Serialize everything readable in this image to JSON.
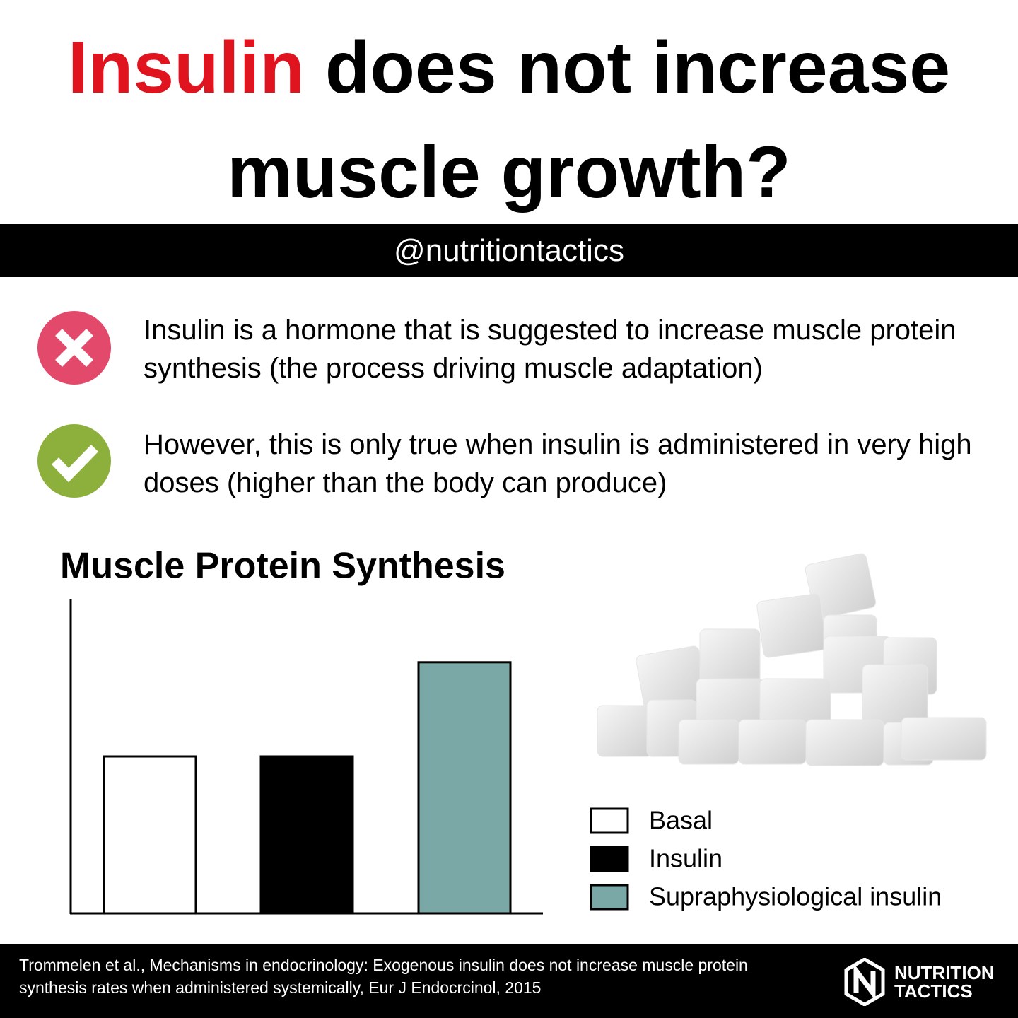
{
  "header": {
    "title_highlight": "Insulin",
    "title_line1_rest": "does not increase",
    "title_line2": "muscle growth?"
  },
  "handle": "@nutritiontactics",
  "points": [
    "Insulin is a hormone that is suggested to increase muscle protein synthesis (the process driving muscle adaptation)",
    "However, this is only true when insulin is administered in very high doses (higher than the body can produce)"
  ],
  "chart_data": {
    "type": "bar",
    "title": "Muscle Protein Synthesis",
    "categories": [
      "Basal",
      "Insulin",
      "Supraphysiological insulin"
    ],
    "values": [
      50,
      50,
      80
    ],
    "colors": [
      "#ffffff",
      "#000000",
      "#7aa8a6"
    ],
    "ylim": [
      0,
      100
    ],
    "legend": "right"
  },
  "footer": {
    "citation": "Trommelen et al., Mechanisms in endocrinology: Exogenous insulin does not increase muscle protein synthesis rates when administered systemically, Eur J Endocrcinol, 2015",
    "logo_line1": "NUTRITION",
    "logo_line2": "TACTICS"
  }
}
